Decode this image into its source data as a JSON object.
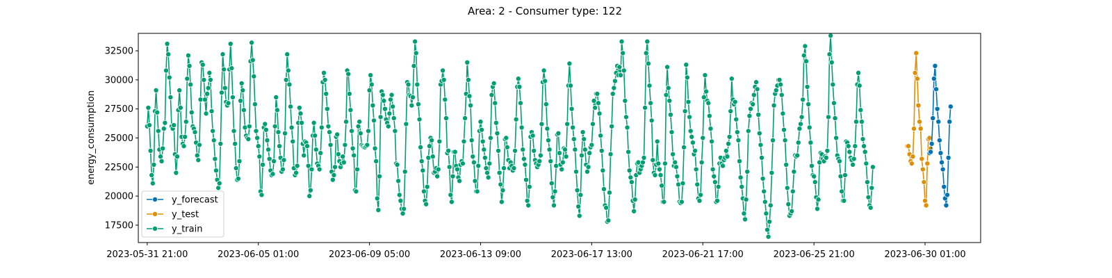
{
  "chart_data": {
    "type": "line",
    "title": "Area: 2 - Consumer type: 122",
    "xlabel": "",
    "ylabel": "energy_consumption",
    "x_tick_labels": [
      "2023-05-31 21:00",
      "2023-06-05 01:00",
      "2023-06-09 05:00",
      "2023-06-13 09:00",
      "2023-06-17 13:00",
      "2023-06-21 17:00",
      "2023-06-25 21:00",
      "2023-06-30 01:00"
    ],
    "y_ticks": [
      17500,
      20000,
      22500,
      25000,
      27500,
      30000,
      32500
    ],
    "ylim": [
      16000,
      34000
    ],
    "x_range_hours": [
      -8,
      750
    ],
    "legend_position": "lower-left",
    "grid": false,
    "sampling": "hourly",
    "series": [
      {
        "name": "y_forecast",
        "color": "#0173b2",
        "start": "2023-06-30 05:00",
        "values": [
          23700,
          23800,
          24500,
          26700,
          30100,
          31200,
          29200,
          27500,
          26400,
          24800,
          23700,
          22900,
          22300,
          20800,
          19800,
          19200,
          20100,
          23300,
          26400,
          27700
        ]
      },
      {
        "name": "y_test",
        "color": "#de8f05",
        "start": "2023-06-29 09:00",
        "values": [
          24300,
          24300,
          23600,
          23000,
          22800,
          23400,
          25800,
          30600,
          32300,
          30100,
          27800,
          26400,
          25800,
          23200,
          22300,
          21200,
          19600,
          19200,
          22800,
          24900,
          25000,
          24100
        ]
      },
      {
        "name": "y_train",
        "color": "#029e73",
        "start": "2023-05-31 21:00",
        "values": [
          26000,
          27600,
          26100,
          23900,
          21800,
          21100,
          22700,
          27300,
          29100,
          27200,
          25600,
          24000,
          23400,
          23000,
          24100,
          25800,
          26300,
          30800,
          33100,
          32200,
          30200,
          28500,
          26000,
          25800,
          26100,
          23600,
          22000,
          23400,
          27400,
          29100,
          27600,
          25100,
          24500,
          24300,
          25100,
          26400,
          30100,
          32100,
          31200,
          29600,
          27200,
          26000,
          25800,
          25500,
          24600,
          23500,
          23100,
          24400,
          28300,
          31500,
          31300,
          30000,
          28300,
          27100,
          28800,
          29300,
          30600,
          30000,
          27300,
          25600,
          24800,
          23200,
          22200,
          21400,
          20700,
          21100,
          24500,
          28900,
          32200,
          30900,
          29300,
          28100,
          27800,
          28000,
          30900,
          33100,
          31000,
          28500,
          25600,
          24500,
          22400,
          21400,
          21500,
          23000,
          28200,
          29700,
          29100,
          27400,
          25900,
          25200,
          25000,
          24900,
          26000,
          31600,
          33200,
          31700,
          30300,
          27900,
          25600,
          25000,
          24300,
          23400,
          20400,
          20100,
          22700,
          25900,
          26200,
          25700,
          24800,
          24000,
          23200,
          22200,
          21800,
          21900,
          23000,
          26000,
          28500,
          27400,
          25500,
          24300,
          23300,
          22100,
          22300,
          23100,
          25400,
          30000,
          32200,
          30800,
          29600,
          27700,
          25900,
          24700,
          22400,
          21800,
          22000,
          22600,
          26300,
          27600,
          27100,
          26300,
          24500,
          23500,
          24700,
          24600,
          24300,
          22600,
          20000,
          20500,
          22300,
          25200,
          26300,
          25200,
          24000,
          22800,
          22600,
          22300,
          23700,
          25900,
          29800,
          30600,
          30000,
          28800,
          27500,
          26000,
          25500,
          24400,
          22100,
          21400,
          21800,
          22500,
          25100,
          25300,
          23600,
          23000,
          22500,
          22800,
          23400,
          22900,
          24400,
          26400,
          30800,
          30500,
          28800,
          27400,
          25600,
          24100,
          23500,
          20500,
          20400,
          22300,
          26000,
          26400,
          25400,
          24400,
          24300,
          24200,
          24200,
          24300,
          24400,
          25600,
          29100,
          30400,
          29600,
          27800,
          26500,
          24100,
          23000,
          19800,
          18800,
          21700,
          26800,
          29000,
          28700,
          28200,
          27500,
          26600,
          26300,
          26000,
          27100,
          28300,
          28700,
          27700,
          26700,
          25600,
          22800,
          22700,
          21300,
          20100,
          19600,
          18900,
          18500,
          18900,
          22100,
          26200,
          29800,
          29600,
          28700,
          28600,
          27800,
          28500,
          31200,
          33300,
          32300,
          29600,
          27900,
          26600,
          24200,
          23000,
          22200,
          20400,
          19600,
          19300,
          20800,
          23300,
          24300,
          25000,
          24800,
          23400,
          22000,
          22100,
          22400,
          21700,
          22300,
          24700,
          29600,
          29900,
          30800,
          30000,
          28300,
          26700,
          23700,
          23900,
          22500,
          20100,
          19500,
          21700,
          23800,
          23800,
          22600,
          22300,
          21600,
          21300,
          22700,
          23000,
          22800,
          24700,
          26700,
          28800,
          31500,
          30000,
          28600,
          27800,
          24800,
          23400,
          22900,
          21300,
          20400,
          20400,
          22600,
          25600,
          26400,
          25700,
          24700,
          24000,
          23300,
          22400,
          22000,
          21600,
          22800,
          25000,
          28700,
          29400,
          29700,
          28000,
          26300,
          25400,
          23900,
          22000,
          21000,
          19500,
          20500,
          22400,
          24900,
          25000,
          24200,
          23100,
          22400,
          22900,
          22600,
          22200,
          22400,
          23900,
          26600,
          29400,
          30100,
          29400,
          28000,
          25900,
          24000,
          23200,
          22700,
          21400,
          19600,
          19200,
          20800,
          25100,
          25500,
          25200,
          23900,
          23100,
          22800,
          22500,
          22700,
          23000,
          23500,
          26200,
          29800,
          30800,
          29900,
          27900,
          25800,
          24800,
          24000,
          23000,
          21100,
          19900,
          19200,
          20400,
          22600,
          25300,
          25400,
          23700,
          22700,
          22300,
          22900,
          24100,
          24000,
          23400,
          26200,
          29500,
          31400,
          29500,
          27500,
          25900,
          24900,
          24000,
          22100,
          20500,
          19100,
          18300,
          20100,
          23500,
          25500,
          24900,
          24000,
          22700,
          22100,
          22500,
          23700,
          24200,
          24400,
          26200,
          28200,
          27600,
          28800,
          28800,
          28000,
          27100,
          25200,
          23900,
          22200,
          20600,
          19200,
          19000,
          17800,
          17900,
          20300,
          23600,
          26000,
          28800,
          29300,
          29900,
          30600,
          31200,
          30400,
          31100,
          30400,
          33300,
          32300,
          30800,
          28200,
          26800,
          25900,
          23800,
          22200,
          21600,
          21200,
          19600,
          18700,
          19700,
          21800,
          22800,
          22900,
          22000,
          22300,
          22600,
          22900,
          23300,
          27600,
          32300,
          33300,
          31400,
          29500,
          28000,
          26500,
          23100,
          22000,
          21800,
          22700,
          24700,
          22800,
          22300,
          21800,
          20900,
          19500,
          19500,
          22800,
          28700,
          31100,
          29300,
          28200,
          27000,
          25500,
          23600,
          22600,
          22900,
          22500,
          21700,
          21000,
          19500,
          19400,
          19500,
          21100,
          24200,
          27300,
          31300,
          30200,
          28100,
          26800,
          25600,
          25100,
          24600,
          23600,
          23900,
          22300,
          21000,
          19800,
          19600,
          20100,
          22900,
          25000,
          28500,
          30400,
          29000,
          28200,
          28000,
          26900,
          25800,
          24700,
          22300,
          21700,
          21200,
          19500,
          19600,
          20800,
          22800,
          23300,
          22800,
          22600,
          23100,
          23300,
          23900,
          23400,
          24500,
          25100,
          27300,
          30100,
          28300,
          27900,
          28100,
          26600,
          25500,
          24800,
          23000,
          21600,
          20800,
          19800,
          18500,
          18000,
          19700,
          22100,
          25600,
          26900,
          27500,
          28000,
          27900,
          28700,
          29400,
          29800,
          29200,
          27000,
          25400,
          24400,
          23300,
          21500,
          20400,
          19500,
          18500,
          17100,
          16500,
          17800,
          19200,
          22000,
          24800,
          27800,
          28800,
          29100,
          29500,
          30000,
          30000,
          29600,
          28700,
          27100,
          25700,
          24800,
          22700,
          20700,
          19300,
          18300,
          18500,
          18700,
          20400,
          22100,
          23500,
          23400,
          23500,
          24600,
          25800,
          26200,
          26800,
          28300,
          32100,
          32900,
          31600,
          29400,
          27900,
          25900,
          24600,
          22600,
          21800,
          21700,
          21200,
          19900,
          18900,
          19700,
          22900,
          23700,
          23600,
          23200,
          23000,
          23400,
          23300,
          23900,
          26800,
          32200,
          33800,
          31500,
          29600,
          28000,
          26700,
          25000,
          23500,
          23200,
          23000,
          21700,
          20400,
          19600,
          19600,
          21800,
          24700,
          24600,
          24300,
          23800,
          23300,
          23100,
          22700,
          23200,
          24300,
          26400,
          29600,
          30600,
          29500,
          27400,
          26400,
          24900,
          24300,
          23800,
          22800,
          21200,
          19900,
          19200,
          19000,
          20700,
          22500
        ]
      }
    ]
  }
}
